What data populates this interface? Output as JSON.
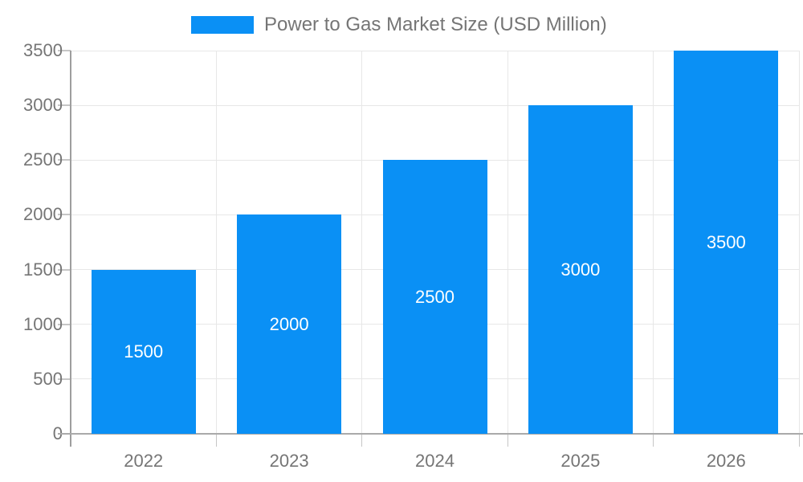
{
  "legend": {
    "label": "Power to Gas Market Size (USD Million)"
  },
  "colors": {
    "bar": "#0a90f5",
    "grid": "#e7e7e7",
    "tick": "#c6c6c6",
    "axis": "#aaaaaa",
    "yaxis_line": "#9e9e9e",
    "label": "#757575",
    "value_label": "#ffffff",
    "background": "#ffffff"
  },
  "chart_data": {
    "type": "bar",
    "title": "Power to Gas Market Size (USD Million)",
    "categories": [
      "2022",
      "2023",
      "2024",
      "2025",
      "2026"
    ],
    "values": [
      1500,
      2000,
      2500,
      3000,
      3500
    ],
    "bar_labels": [
      "1500",
      "2000",
      "2500",
      "3000",
      "3500"
    ],
    "xlabel": "",
    "ylabel": "",
    "ylim": [
      0,
      3500
    ],
    "yticks": [
      0,
      500,
      1000,
      1500,
      2000,
      2500,
      3000,
      3500
    ],
    "grid": true,
    "legend_position": "top",
    "value_labels_position": "center-inside"
  }
}
